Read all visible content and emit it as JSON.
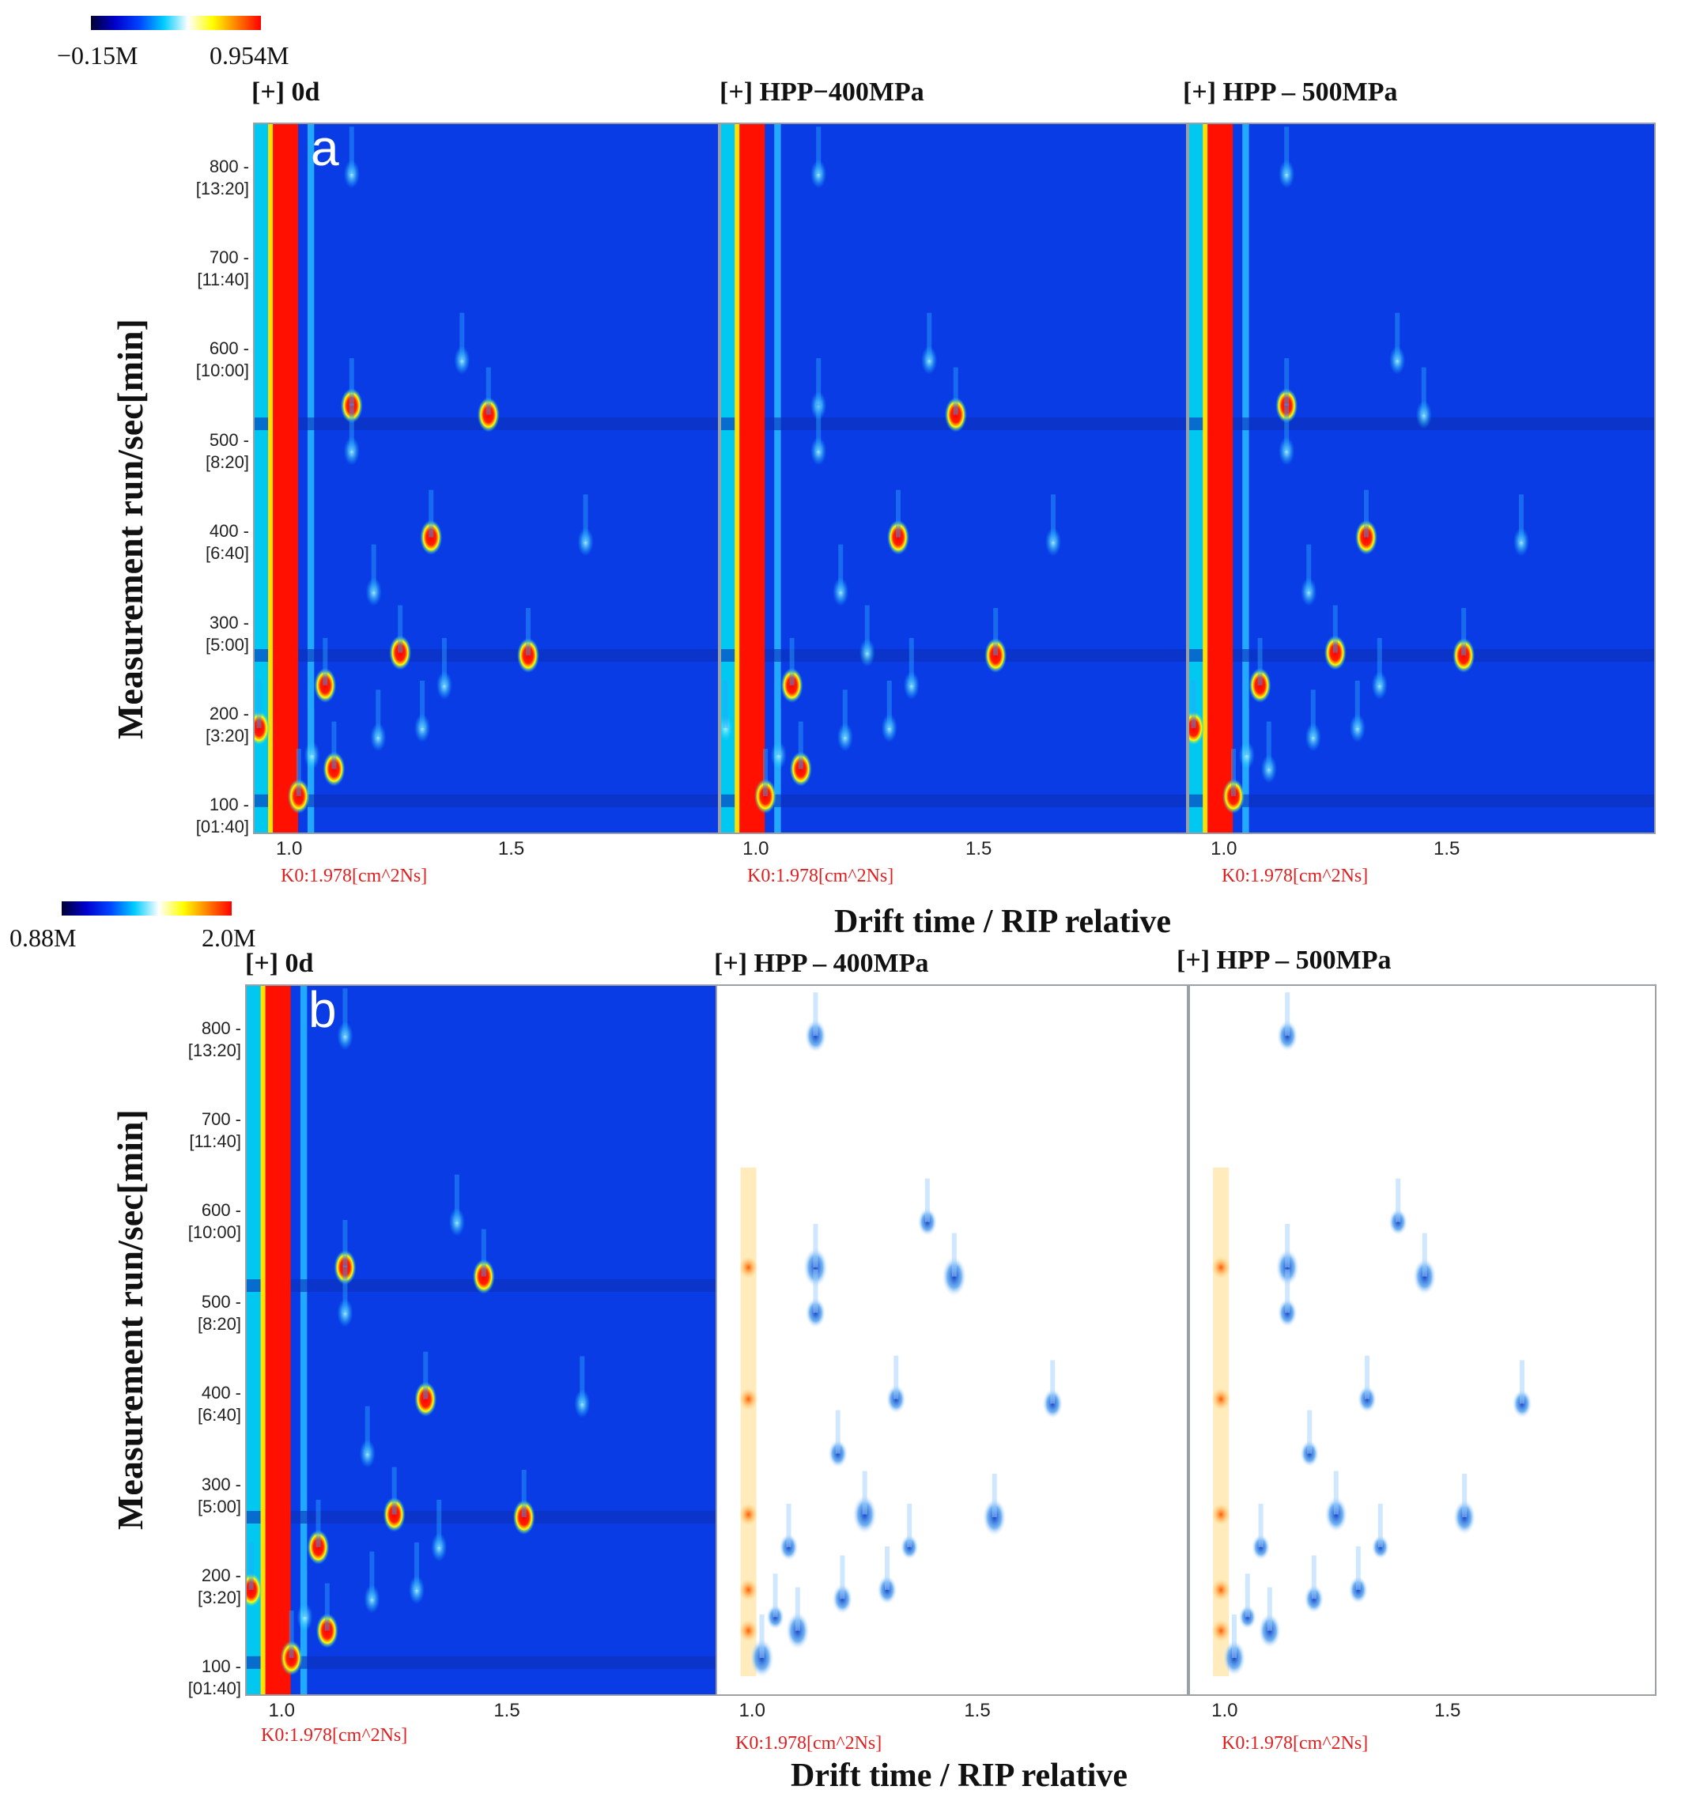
{
  "colors": {
    "heat_scale": [
      "#000033",
      "#0000cc",
      "#0044ff",
      "#00ccff",
      "#ffffff",
      "#ffff00",
      "#ff8000",
      "#ff0000"
    ],
    "diff_scale": [
      "#1a4fd6",
      "#6fb2ff",
      "#ffffff",
      "#ffd040",
      "#ff4000"
    ],
    "k0_label": "#e02020"
  },
  "figure": {
    "panel_a": {
      "letter": "a",
      "colorbar": {
        "min_label": "−0.15M",
        "max_label": "0.954M"
      },
      "titles": [
        "[+] 0d",
        "[+] HPP−400MPa",
        "[+] HPP – 500MPa"
      ],
      "k0_label": "K0:1.978[cm^2Ns]",
      "x_axis_label": "Drift time / RIP relative"
    },
    "panel_b": {
      "letter": "b",
      "colorbar": {
        "min_label": "0.88M",
        "max_label": "2.0M"
      },
      "titles": [
        "[+] 0d",
        "[+] HPP – 400MPa",
        "[+] HPP – 500MPa"
      ],
      "k0_label": "K0:1.978[cm^2Ns]",
      "x_axis_label": "Drift time / RIP relative"
    },
    "y_axis_label": "Measurement run/sec[min]",
    "y_ticks": [
      {
        "value": 100,
        "label": "100",
        "sub": "[01:40]"
      },
      {
        "value": 200,
        "label": "200",
        "sub": "[3:20]"
      },
      {
        "value": 300,
        "label": "300",
        "sub": "[5:00]"
      },
      {
        "value": 400,
        "label": "400",
        "sub": "[6:40]"
      },
      {
        "value": 500,
        "label": "500",
        "sub": "[8:20]"
      },
      {
        "value": 600,
        "label": "600",
        "sub": "[10:00]"
      },
      {
        "value": 700,
        "label": "700",
        "sub": "[11:40]"
      },
      {
        "value": 800,
        "label": "800",
        "sub": "[13:20]"
      }
    ],
    "x_ticks": [
      {
        "value": 1.0,
        "label": "1.0"
      },
      {
        "value": 1.5,
        "label": "1.5"
      }
    ]
  },
  "chart_data": {
    "type": "heatmap",
    "x_range": [
      0.92,
      1.97
    ],
    "y_range": [
      70,
      850
    ],
    "xlabel": "Drift time / RIP relative",
    "ylabel": "Measurement run/sec[min]",
    "rip_x": 0.99,
    "peaks": [
      {
        "x": 1.14,
        "y": 540,
        "i": 1.0
      },
      {
        "x": 1.45,
        "y": 530,
        "i": 1.0
      },
      {
        "x": 1.32,
        "y": 395,
        "i": 0.95
      },
      {
        "x": 1.25,
        "y": 268,
        "i": 0.95
      },
      {
        "x": 1.54,
        "y": 265,
        "i": 0.9
      },
      {
        "x": 1.1,
        "y": 140,
        "i": 0.9
      },
      {
        "x": 0.93,
        "y": 185,
        "i": 0.85
      },
      {
        "x": 1.08,
        "y": 232,
        "i": 0.8
      },
      {
        "x": 1.02,
        "y": 110,
        "i": 0.95
      },
      {
        "x": 1.14,
        "y": 795,
        "i": 0.7
      },
      {
        "x": 1.67,
        "y": 390,
        "i": 0.55
      },
      {
        "x": 1.39,
        "y": 590,
        "i": 0.45
      },
      {
        "x": 1.35,
        "y": 232,
        "i": 0.6
      },
      {
        "x": 1.2,
        "y": 175,
        "i": 0.55
      },
      {
        "x": 1.14,
        "y": 490,
        "i": 0.55
      },
      {
        "x": 1.3,
        "y": 185,
        "i": 0.5
      },
      {
        "x": 1.19,
        "y": 335,
        "i": 0.45
      },
      {
        "x": 1.05,
        "y": 155,
        "i": 0.6
      }
    ],
    "panels": [
      {
        "name": "[+] 0d",
        "set": "a"
      },
      {
        "name": "[+] HPP−400MPa",
        "set": "a"
      },
      {
        "name": "[+] HPP – 500MPa",
        "set": "a"
      },
      {
        "name": "[+] 0d",
        "set": "b"
      },
      {
        "name": "[+] HPP – 400MPa",
        "set": "b"
      },
      {
        "name": "[+] HPP – 500MPa",
        "set": "b"
      }
    ]
  }
}
